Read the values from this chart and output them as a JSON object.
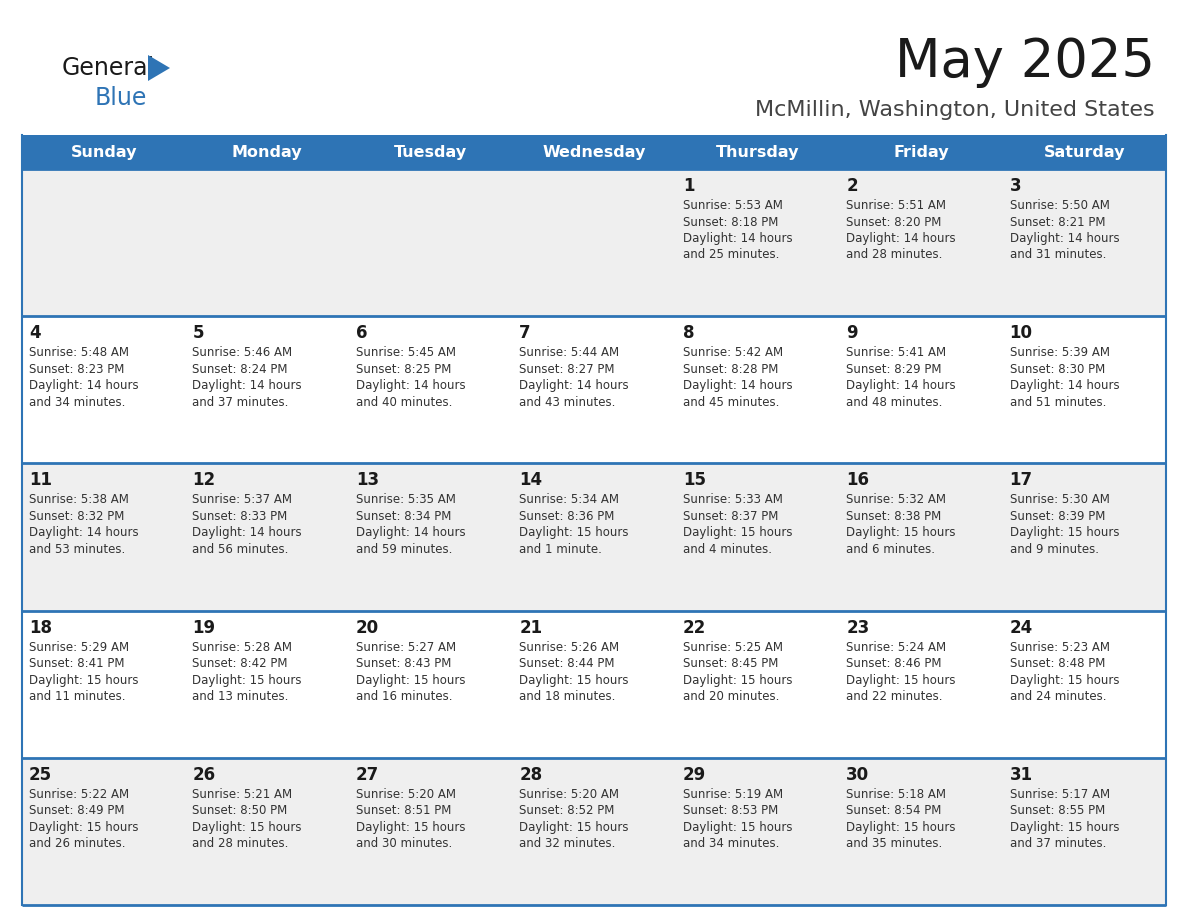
{
  "title": "May 2025",
  "subtitle": "McMillin, Washington, United States",
  "days_of_week": [
    "Sunday",
    "Monday",
    "Tuesday",
    "Wednesday",
    "Thursday",
    "Friday",
    "Saturday"
  ],
  "header_bg": "#2E74B5",
  "header_text": "#FFFFFF",
  "row_bg_even": "#EFEFEF",
  "row_bg_odd": "#FFFFFF",
  "cell_border": "#2E74B5",
  "calendar_data": [
    [
      null,
      null,
      null,
      null,
      {
        "day": 1,
        "sunrise": "5:53 AM",
        "sunset": "8:18 PM",
        "daylight": "14 hours",
        "daylight2": "and 25 minutes."
      },
      {
        "day": 2,
        "sunrise": "5:51 AM",
        "sunset": "8:20 PM",
        "daylight": "14 hours",
        "daylight2": "and 28 minutes."
      },
      {
        "day": 3,
        "sunrise": "5:50 AM",
        "sunset": "8:21 PM",
        "daylight": "14 hours",
        "daylight2": "and 31 minutes."
      }
    ],
    [
      {
        "day": 4,
        "sunrise": "5:48 AM",
        "sunset": "8:23 PM",
        "daylight": "14 hours",
        "daylight2": "and 34 minutes."
      },
      {
        "day": 5,
        "sunrise": "5:46 AM",
        "sunset": "8:24 PM",
        "daylight": "14 hours",
        "daylight2": "and 37 minutes."
      },
      {
        "day": 6,
        "sunrise": "5:45 AM",
        "sunset": "8:25 PM",
        "daylight": "14 hours",
        "daylight2": "and 40 minutes."
      },
      {
        "day": 7,
        "sunrise": "5:44 AM",
        "sunset": "8:27 PM",
        "daylight": "14 hours",
        "daylight2": "and 43 minutes."
      },
      {
        "day": 8,
        "sunrise": "5:42 AM",
        "sunset": "8:28 PM",
        "daylight": "14 hours",
        "daylight2": "and 45 minutes."
      },
      {
        "day": 9,
        "sunrise": "5:41 AM",
        "sunset": "8:29 PM",
        "daylight": "14 hours",
        "daylight2": "and 48 minutes."
      },
      {
        "day": 10,
        "sunrise": "5:39 AM",
        "sunset": "8:30 PM",
        "daylight": "14 hours",
        "daylight2": "and 51 minutes."
      }
    ],
    [
      {
        "day": 11,
        "sunrise": "5:38 AM",
        "sunset": "8:32 PM",
        "daylight": "14 hours",
        "daylight2": "and 53 minutes."
      },
      {
        "day": 12,
        "sunrise": "5:37 AM",
        "sunset": "8:33 PM",
        "daylight": "14 hours",
        "daylight2": "and 56 minutes."
      },
      {
        "day": 13,
        "sunrise": "5:35 AM",
        "sunset": "8:34 PM",
        "daylight": "14 hours",
        "daylight2": "and 59 minutes."
      },
      {
        "day": 14,
        "sunrise": "5:34 AM",
        "sunset": "8:36 PM",
        "daylight": "15 hours",
        "daylight2": "and 1 minute."
      },
      {
        "day": 15,
        "sunrise": "5:33 AM",
        "sunset": "8:37 PM",
        "daylight": "15 hours",
        "daylight2": "and 4 minutes."
      },
      {
        "day": 16,
        "sunrise": "5:32 AM",
        "sunset": "8:38 PM",
        "daylight": "15 hours",
        "daylight2": "and 6 minutes."
      },
      {
        "day": 17,
        "sunrise": "5:30 AM",
        "sunset": "8:39 PM",
        "daylight": "15 hours",
        "daylight2": "and 9 minutes."
      }
    ],
    [
      {
        "day": 18,
        "sunrise": "5:29 AM",
        "sunset": "8:41 PM",
        "daylight": "15 hours",
        "daylight2": "and 11 minutes."
      },
      {
        "day": 19,
        "sunrise": "5:28 AM",
        "sunset": "8:42 PM",
        "daylight": "15 hours",
        "daylight2": "and 13 minutes."
      },
      {
        "day": 20,
        "sunrise": "5:27 AM",
        "sunset": "8:43 PM",
        "daylight": "15 hours",
        "daylight2": "and 16 minutes."
      },
      {
        "day": 21,
        "sunrise": "5:26 AM",
        "sunset": "8:44 PM",
        "daylight": "15 hours",
        "daylight2": "and 18 minutes."
      },
      {
        "day": 22,
        "sunrise": "5:25 AM",
        "sunset": "8:45 PM",
        "daylight": "15 hours",
        "daylight2": "and 20 minutes."
      },
      {
        "day": 23,
        "sunrise": "5:24 AM",
        "sunset": "8:46 PM",
        "daylight": "15 hours",
        "daylight2": "and 22 minutes."
      },
      {
        "day": 24,
        "sunrise": "5:23 AM",
        "sunset": "8:48 PM",
        "daylight": "15 hours",
        "daylight2": "and 24 minutes."
      }
    ],
    [
      {
        "day": 25,
        "sunrise": "5:22 AM",
        "sunset": "8:49 PM",
        "daylight": "15 hours",
        "daylight2": "and 26 minutes."
      },
      {
        "day": 26,
        "sunrise": "5:21 AM",
        "sunset": "8:50 PM",
        "daylight": "15 hours",
        "daylight2": "and 28 minutes."
      },
      {
        "day": 27,
        "sunrise": "5:20 AM",
        "sunset": "8:51 PM",
        "daylight": "15 hours",
        "daylight2": "and 30 minutes."
      },
      {
        "day": 28,
        "sunrise": "5:20 AM",
        "sunset": "8:52 PM",
        "daylight": "15 hours",
        "daylight2": "and 32 minutes."
      },
      {
        "day": 29,
        "sunrise": "5:19 AM",
        "sunset": "8:53 PM",
        "daylight": "15 hours",
        "daylight2": "and 34 minutes."
      },
      {
        "day": 30,
        "sunrise": "5:18 AM",
        "sunset": "8:54 PM",
        "daylight": "15 hours",
        "daylight2": "and 35 minutes."
      },
      {
        "day": 31,
        "sunrise": "5:17 AM",
        "sunset": "8:55 PM",
        "daylight": "15 hours",
        "daylight2": "and 37 minutes."
      }
    ]
  ]
}
